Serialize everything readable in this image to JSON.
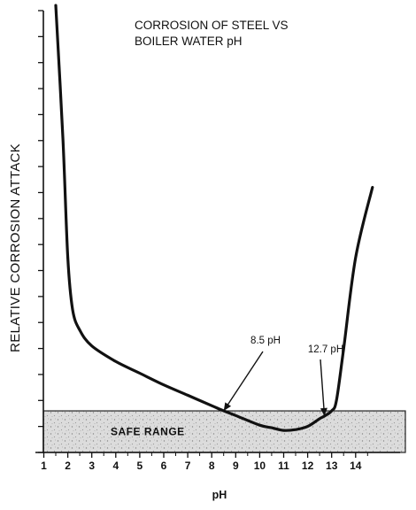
{
  "chart_data": {
    "type": "line",
    "title_lines": [
      "CORROSION OF STEEL  VS",
      "BOILER WATER pH"
    ],
    "xlabel": "pH",
    "ylabel": "RELATIVE  CORROSION  ATTACK",
    "x_ticks": [
      1,
      2,
      3,
      4,
      5,
      6,
      7,
      8,
      9,
      10,
      11,
      12,
      13,
      14
    ],
    "xlim": [
      1,
      14.8
    ],
    "ylim": [
      0,
      17
    ],
    "grid": false,
    "series": [
      {
        "points": [
          [
            1.5,
            17.2
          ],
          [
            1.8,
            12.0
          ],
          [
            2.0,
            7.5
          ],
          [
            2.2,
            5.5
          ],
          [
            2.5,
            4.7
          ],
          [
            3.0,
            4.1
          ],
          [
            4.0,
            3.5
          ],
          [
            5.0,
            3.05
          ],
          [
            6.0,
            2.6
          ],
          [
            7.0,
            2.2
          ],
          [
            8.0,
            1.8
          ],
          [
            8.5,
            1.6
          ],
          [
            9.0,
            1.42
          ],
          [
            10.0,
            1.05
          ],
          [
            10.5,
            0.95
          ],
          [
            11.0,
            0.85
          ],
          [
            11.5,
            0.88
          ],
          [
            12.0,
            1.0
          ],
          [
            12.5,
            1.3
          ],
          [
            12.7,
            1.4
          ],
          [
            13.0,
            1.6
          ],
          [
            13.2,
            2.0
          ],
          [
            13.5,
            4.0
          ],
          [
            14.0,
            7.5
          ],
          [
            14.7,
            10.2
          ]
        ]
      }
    ],
    "safe_range": {
      "label": "SAFE RANGE",
      "y": [
        0,
        1.6
      ]
    },
    "annotations": [
      {
        "text": "8.5 pH",
        "x": 8.5,
        "y": 1.6
      },
      {
        "text": "12.7 pH",
        "x": 12.7,
        "y": 1.4
      }
    ]
  }
}
